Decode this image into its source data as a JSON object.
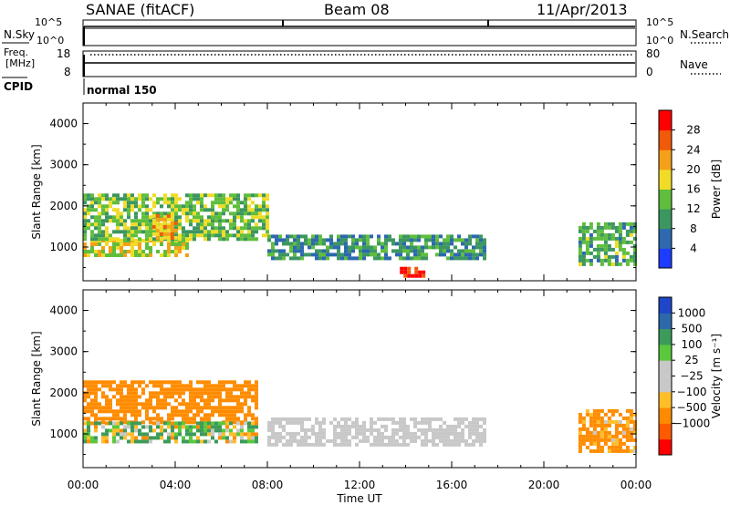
{
  "header": {
    "station": "SANAE (fitACF)",
    "beam": "Beam 08",
    "date": "11/Apr/2013"
  },
  "noise_panel": {
    "left_label": "N.Sky",
    "right_label": "N.Search",
    "ticks_left": [
      "10^5",
      "10^0"
    ],
    "ticks_right": [
      "10^5",
      "10^0"
    ]
  },
  "freq_panel": {
    "left_label_1": "Freq.",
    "left_label_2": "[MHz]",
    "ticks_left": [
      "18",
      "8"
    ],
    "ticks_right": [
      "80",
      "0"
    ],
    "right_label": "Nave"
  },
  "cpid": {
    "label": "CPID",
    "value": "normal 150"
  },
  "colors": {
    "power_scale": [
      "#1e3cff",
      "#2d68b0",
      "#3c9660",
      "#5fbe3c",
      "#f0dc28",
      "#f5a019",
      "#f05a0a",
      "#ff0000"
    ],
    "velocity_scale": [
      "#ff0000",
      "#ff5a00",
      "#ff8c00",
      "#ffbe28",
      "#c8c8c8",
      "#c8c8c8",
      "#5ac83c",
      "#3c9b5a",
      "#2d69aa",
      "#1e46c8"
    ],
    "ground_scatter": "#c8c8c8"
  },
  "chart_data": [
    {
      "type": "heatmap",
      "panel": "power",
      "xlabel": "",
      "ylabel": "Slant Range [km]",
      "xlim": [
        "00:00",
        "24:00"
      ],
      "ylim": [
        180,
        4500
      ],
      "yticks": [
        "1000",
        "2000",
        "3000",
        "4000"
      ],
      "colorbar": {
        "label": "Power [dB]",
        "ticks": [
          "4",
          "8",
          "12",
          "16",
          "20",
          "24",
          "28"
        ],
        "range": [
          0,
          32
        ]
      },
      "scatter_regions": [
        {
          "time": [
            "00:00",
            "04:30"
          ],
          "range_km": [
            800,
            1200
          ],
          "power_db": 18
        },
        {
          "time": [
            "00:00",
            "08:00"
          ],
          "range_km": [
            1200,
            2300
          ],
          "power_db": 14
        },
        {
          "time": [
            "03:00",
            "04:00"
          ],
          "range_km": [
            1200,
            1800
          ],
          "power_db": 22
        },
        {
          "time": [
            "08:00",
            "17:30"
          ],
          "range_km": [
            700,
            1300
          ],
          "power_db": 10
        },
        {
          "time": [
            "13:45",
            "14:50"
          ],
          "range_km": [
            330,
            520
          ],
          "power_db": 30
        },
        {
          "time": [
            "21:30",
            "24:00"
          ],
          "range_km": [
            600,
            1600
          ],
          "power_db": 12
        }
      ]
    },
    {
      "type": "heatmap",
      "panel": "velocity",
      "xlabel": "Time UT",
      "ylabel": "Slant Range [km]",
      "xlim": [
        "00:00",
        "24:00"
      ],
      "ylim": [
        180,
        4500
      ],
      "xticks": [
        "00:00",
        "04:00",
        "08:00",
        "12:00",
        "16:00",
        "20:00",
        "00:00"
      ],
      "yticks": [
        "1000",
        "2000",
        "3000",
        "4000"
      ],
      "colorbar": {
        "label": "Velocity [m s⁻¹]",
        "ticks": [
          "1000",
          "500",
          "100",
          "25",
          "−25",
          "−100",
          "−500",
          "−1000"
        ]
      },
      "scatter_regions": [
        {
          "time": [
            "00:00",
            "07:30"
          ],
          "range_km": [
            1300,
            2300
          ],
          "velocity_ms": -300
        },
        {
          "time": [
            "00:00",
            "07:30"
          ],
          "range_km": [
            800,
            1300
          ],
          "velocity_ms": 50
        },
        {
          "time": [
            "08:00",
            "17:30"
          ],
          "range_km": [
            700,
            1400
          ],
          "velocity_ms": 0,
          "ground_scatter": true
        },
        {
          "time": [
            "21:30",
            "24:00"
          ],
          "range_km": [
            600,
            1600
          ],
          "velocity_ms": -200
        }
      ]
    }
  ]
}
